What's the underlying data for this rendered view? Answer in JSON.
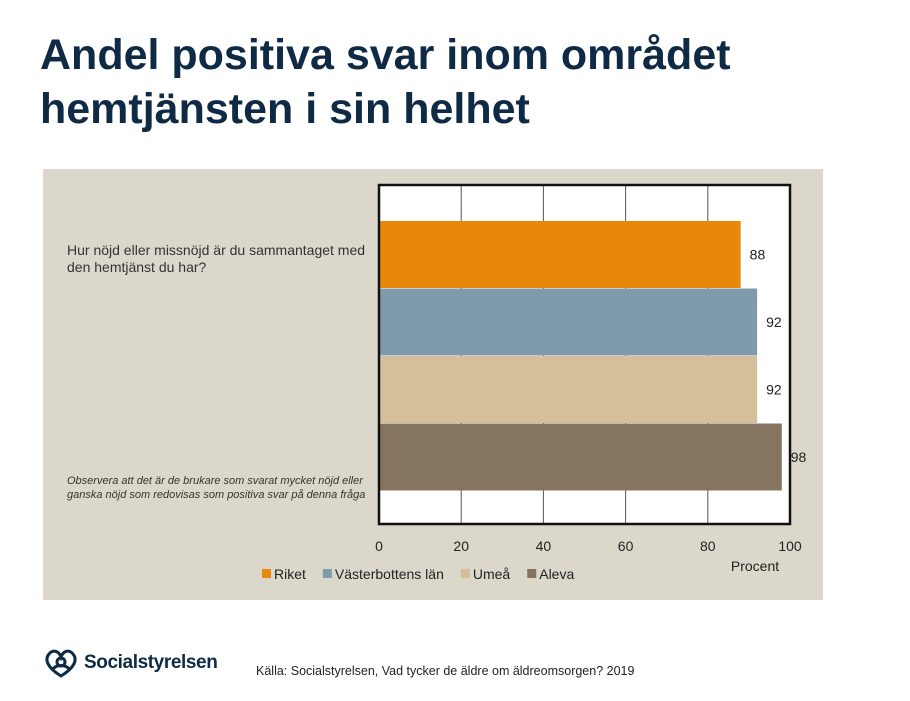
{
  "header": {
    "title_line1": "Andel positiva svar inom området",
    "title_line2": "hemtjänsten i sin helhet"
  },
  "chart": {
    "question": "Hur nöjd eller missnöjd är du sammantaget med den hemtjänst du har?",
    "note": "Observera att det är de brukare som svarat mycket  nöjd eller ganska nöjd som redovisas som positiva svar på denna fråga"
  },
  "chart_data": {
    "type": "bar",
    "orientation": "horizontal",
    "title": "",
    "xlabel": "Procent",
    "ylabel": "",
    "xlim": [
      0,
      100
    ],
    "xticks": [
      0,
      20,
      40,
      60,
      80,
      100
    ],
    "grid": true,
    "legend_position": "bottom",
    "series": [
      {
        "name": "Riket",
        "value": 88,
        "color": "#e8880a"
      },
      {
        "name": "Västerbottens län",
        "value": 92,
        "color": "#7f9aaa"
      },
      {
        "name": "Umeå",
        "value": 92,
        "color": "#d3c09a"
      },
      {
        "name": "Aleva",
        "value": 98,
        "color": "#85745f"
      }
    ]
  },
  "footer": {
    "logo_text": "Socialstyrelsen",
    "source": "Källa: Socialstyrelsen, Vad tycker de äldre om äldreomsorgen? 2019"
  }
}
